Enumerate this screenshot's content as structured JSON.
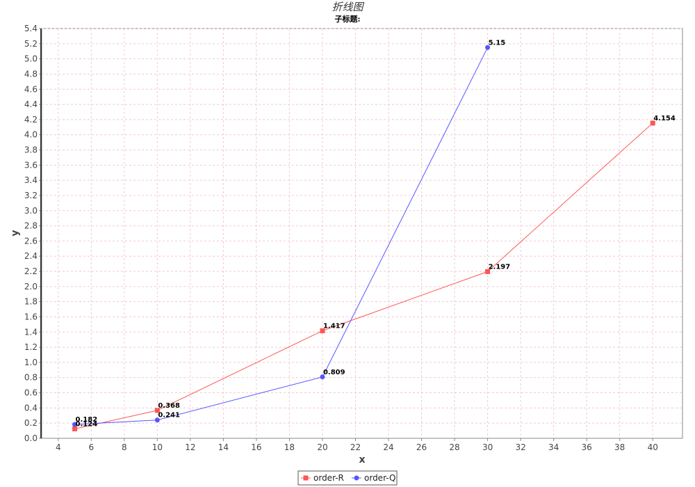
{
  "chart_data": {
    "type": "line",
    "title": "折线图",
    "subtitle": "子标题:",
    "xlabel": "x",
    "ylabel": "y",
    "xlim": [
      3,
      41.8
    ],
    "ylim": [
      0,
      5.4
    ],
    "x_ticks": [
      4,
      6,
      8,
      10,
      12,
      14,
      16,
      18,
      20,
      22,
      24,
      26,
      28,
      30,
      32,
      34,
      36,
      38,
      40
    ],
    "y_ticks": [
      0,
      0.2,
      0.4,
      0.6,
      0.8,
      1.0,
      1.2,
      1.4,
      1.6,
      1.8,
      2.0,
      2.2,
      2.4,
      2.6,
      2.8,
      3.0,
      3.2,
      3.4,
      3.6,
      3.8,
      4.0,
      4.2,
      4.4,
      4.6,
      4.8,
      5.0,
      5.2,
      5.4
    ],
    "grid": true,
    "legend_position": "bottom",
    "series": [
      {
        "name": "order-R",
        "color": "#ff5555",
        "marker": "square",
        "x": [
          5,
          10,
          20,
          30,
          40
        ],
        "y": [
          0.124,
          0.368,
          1.417,
          2.197,
          4.154
        ],
        "labels": [
          "0.124",
          "0.368",
          "1.417",
          "2.197",
          "4.154"
        ]
      },
      {
        "name": "order-Q",
        "color": "#5555ff",
        "marker": "circle",
        "x": [
          5,
          10,
          20,
          30
        ],
        "y": [
          0.182,
          0.241,
          0.809,
          5.15
        ],
        "labels": [
          "0.182",
          "0.241",
          "0.809",
          "5.15"
        ]
      }
    ]
  }
}
